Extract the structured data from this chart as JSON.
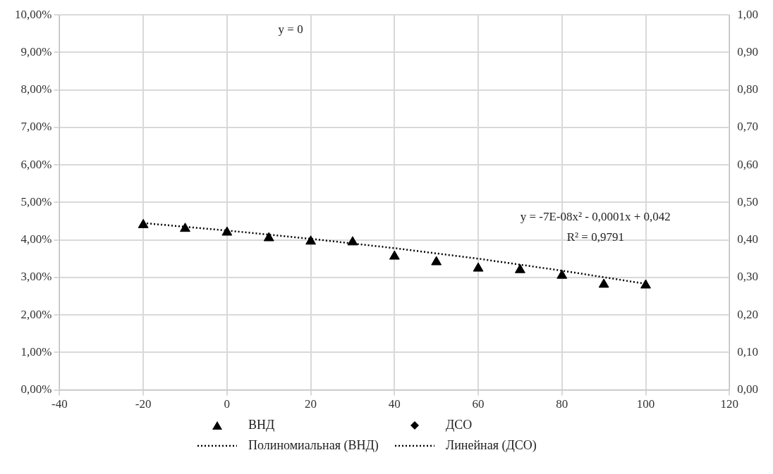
{
  "chart_data": {
    "type": "scatter",
    "x": [
      -20,
      -10,
      0,
      10,
      20,
      30,
      40,
      50,
      60,
      70,
      80,
      90,
      100
    ],
    "series": [
      {
        "name": "ВНД",
        "marker": "triangle",
        "color": "#000000",
        "values": [
          0.044,
          0.043,
          0.042,
          0.0405,
          0.0396,
          0.0394,
          0.0356,
          0.0341,
          0.0324,
          0.032,
          0.0305,
          0.0281,
          0.0279
        ]
      },
      {
        "name": "ДСО",
        "marker": "diamond",
        "color": "#000000",
        "values": [
          null,
          null,
          null,
          null,
          null,
          null,
          null,
          null,
          null,
          null,
          null,
          null,
          null
        ]
      },
      {
        "name": "Полиномиальная (ВНД)",
        "type": "line",
        "marker": "none",
        "line_style": "dotted",
        "color": "#000000",
        "x": [
          -20,
          0,
          20,
          40,
          60,
          80,
          100
        ],
        "values": [
          0.0445,
          0.0425,
          0.0403,
          0.0378,
          0.035,
          0.0318,
          0.0283
        ]
      },
      {
        "name": "Линейная (ДСО)",
        "type": "line",
        "marker": "none",
        "line_style": "dotted",
        "color": "#000000",
        "values": [
          null,
          null,
          null,
          null,
          null,
          null,
          null,
          null,
          null,
          null,
          null,
          null,
          null
        ]
      }
    ],
    "xlim": [
      -40,
      120
    ],
    "xticks": [
      -40,
      -20,
      0,
      20,
      40,
      60,
      80,
      100,
      120
    ],
    "ylim": [
      0,
      0.1
    ],
    "yticks": [
      {
        "value": 0,
        "label": "0,00%"
      },
      {
        "value": 0.01,
        "label": "1,00%"
      },
      {
        "value": 0.02,
        "label": "2,00%"
      },
      {
        "value": 0.03,
        "label": "3,00%"
      },
      {
        "value": 0.04,
        "label": "4,00%"
      },
      {
        "value": 0.05,
        "label": "5,00%"
      },
      {
        "value": 0.06,
        "label": "6,00%"
      },
      {
        "value": 0.07,
        "label": "7,00%"
      },
      {
        "value": 0.08,
        "label": "8,00%"
      },
      {
        "value": 0.09,
        "label": "9,00%"
      },
      {
        "value": 0.1,
        "label": "10,00%"
      }
    ],
    "y2lim": [
      0,
      1
    ],
    "y2ticks": [
      {
        "value": 0,
        "label": "0,00"
      },
      {
        "value": 0.1,
        "label": "0,10"
      },
      {
        "value": 0.2,
        "label": "0,20"
      },
      {
        "value": 0.3,
        "label": "0,30"
      },
      {
        "value": 0.4,
        "label": "0,40"
      },
      {
        "value": 0.5,
        "label": "0,50"
      },
      {
        "value": 0.6,
        "label": "0,60"
      },
      {
        "value": 0.7,
        "label": "0,70"
      },
      {
        "value": 0.8,
        "label": "0,80"
      },
      {
        "value": 0.9,
        "label": "0,90"
      },
      {
        "value": 1,
        "label": "1,00"
      }
    ],
    "annotations": [
      "y = 0",
      "y = -7E-08x² - 0,0001x + 0,042",
      "R² = 0,9791"
    ],
    "grid": true,
    "legend": "bottom"
  }
}
